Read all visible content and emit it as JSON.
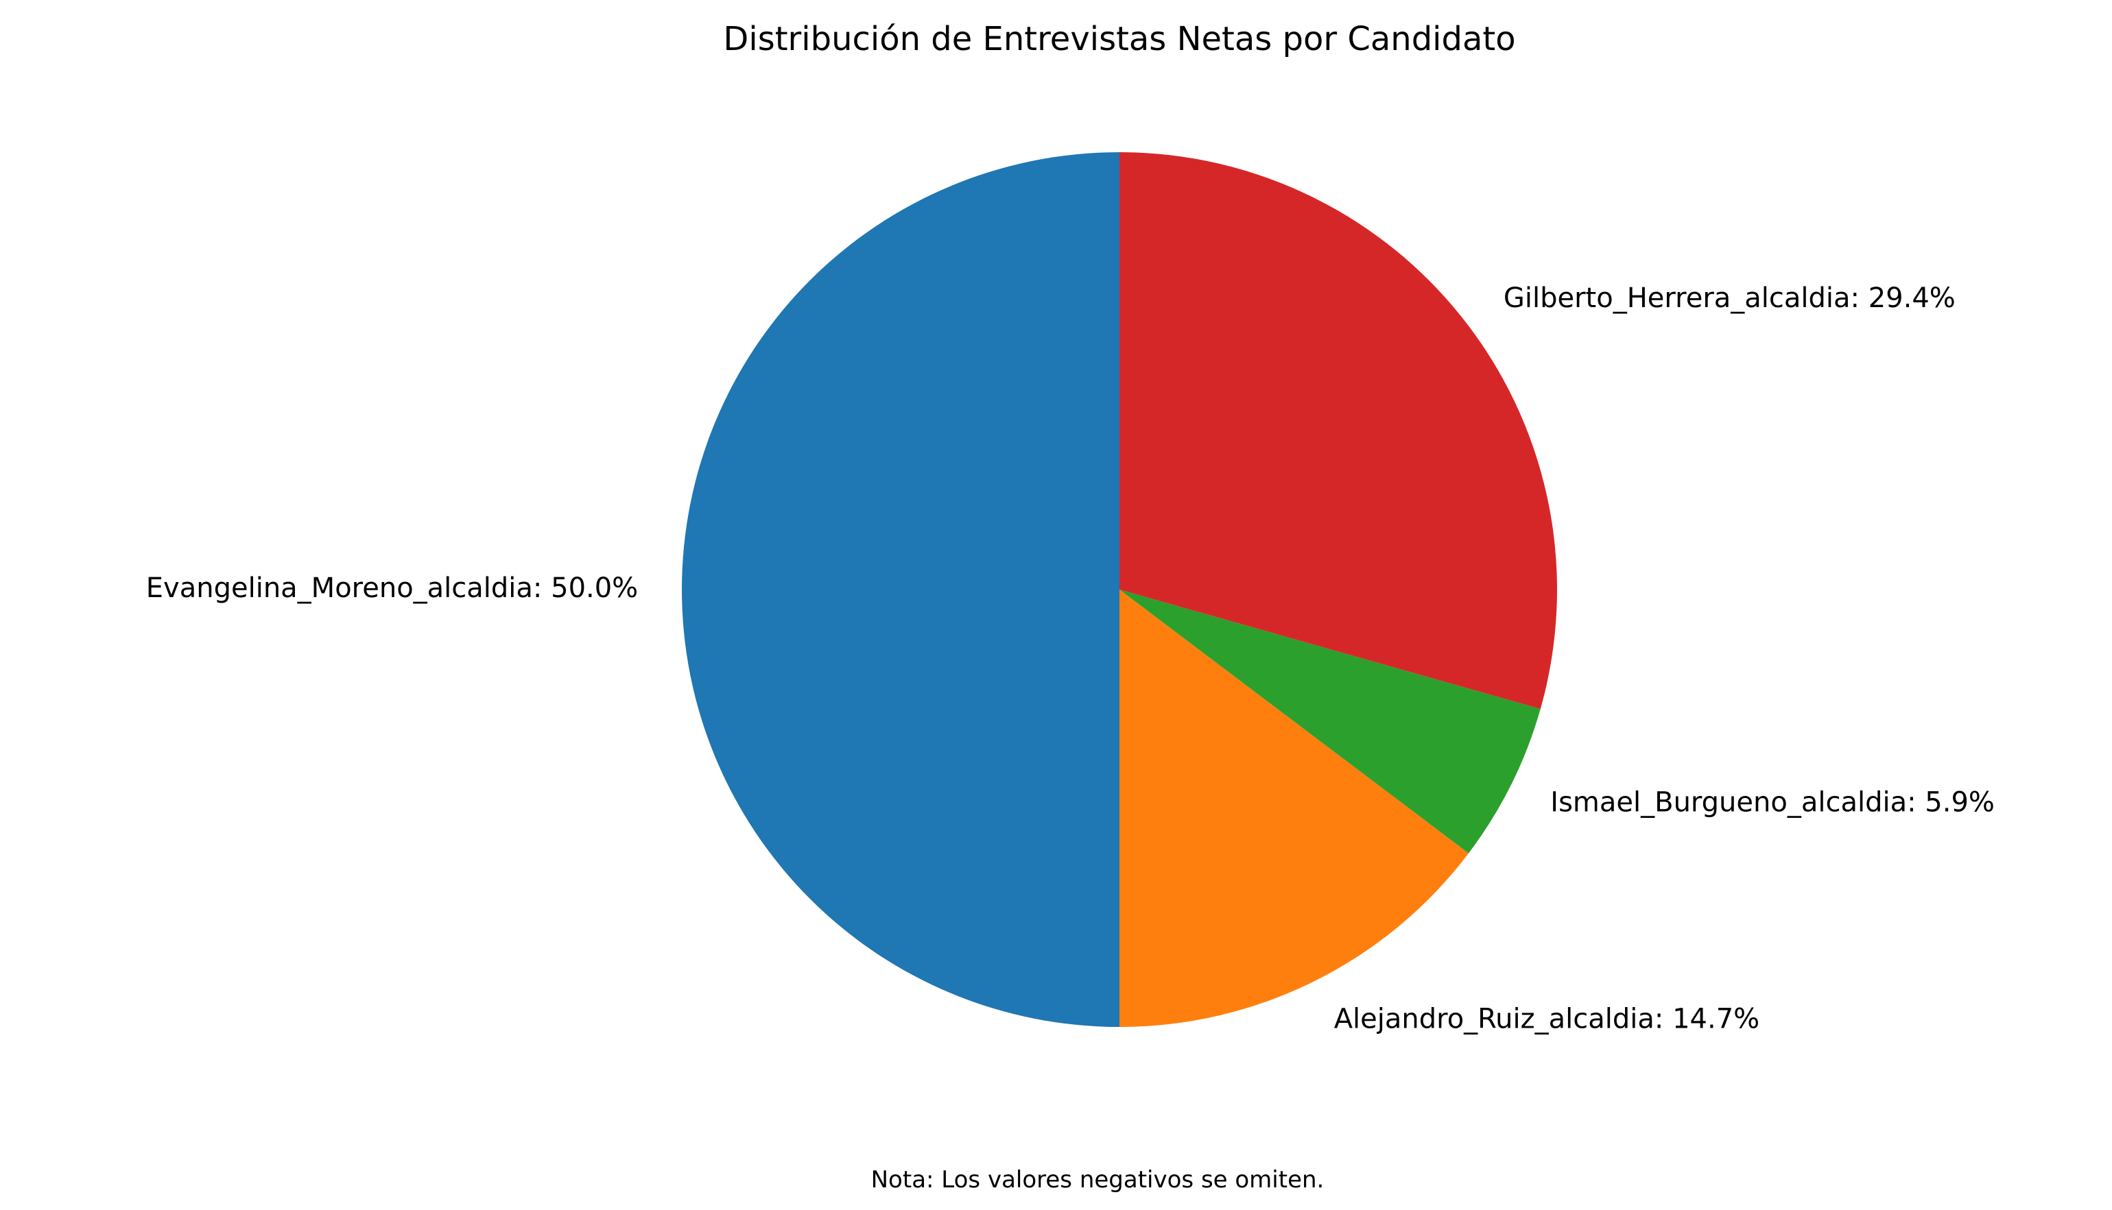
{
  "chart_data": {
    "type": "pie",
    "title": "Distribución de Entrevistas Netas por Candidato",
    "note": "Nota: Los valores negativos se omiten.",
    "slices": [
      {
        "label": "Evangelina_Moreno_alcaldia",
        "percent": 50.0,
        "percent_label": "50.0%",
        "color": "#1f77b4"
      },
      {
        "label": "Alejandro_Ruiz_alcaldia",
        "percent": 14.7,
        "percent_label": "14.7%",
        "color": "#ff7f0e"
      },
      {
        "label": "Ismael_Burgueno_alcaldia",
        "percent": 5.9,
        "percent_label": "5.9%",
        "color": "#2ca02c"
      },
      {
        "label": "Gilberto_Herrera_alcaldia",
        "percent": 29.4,
        "percent_label": "29.4%",
        "color": "#d62728"
      }
    ],
    "start_angle_deg": 90,
    "direction": "counterclockwise",
    "legend": "none"
  }
}
